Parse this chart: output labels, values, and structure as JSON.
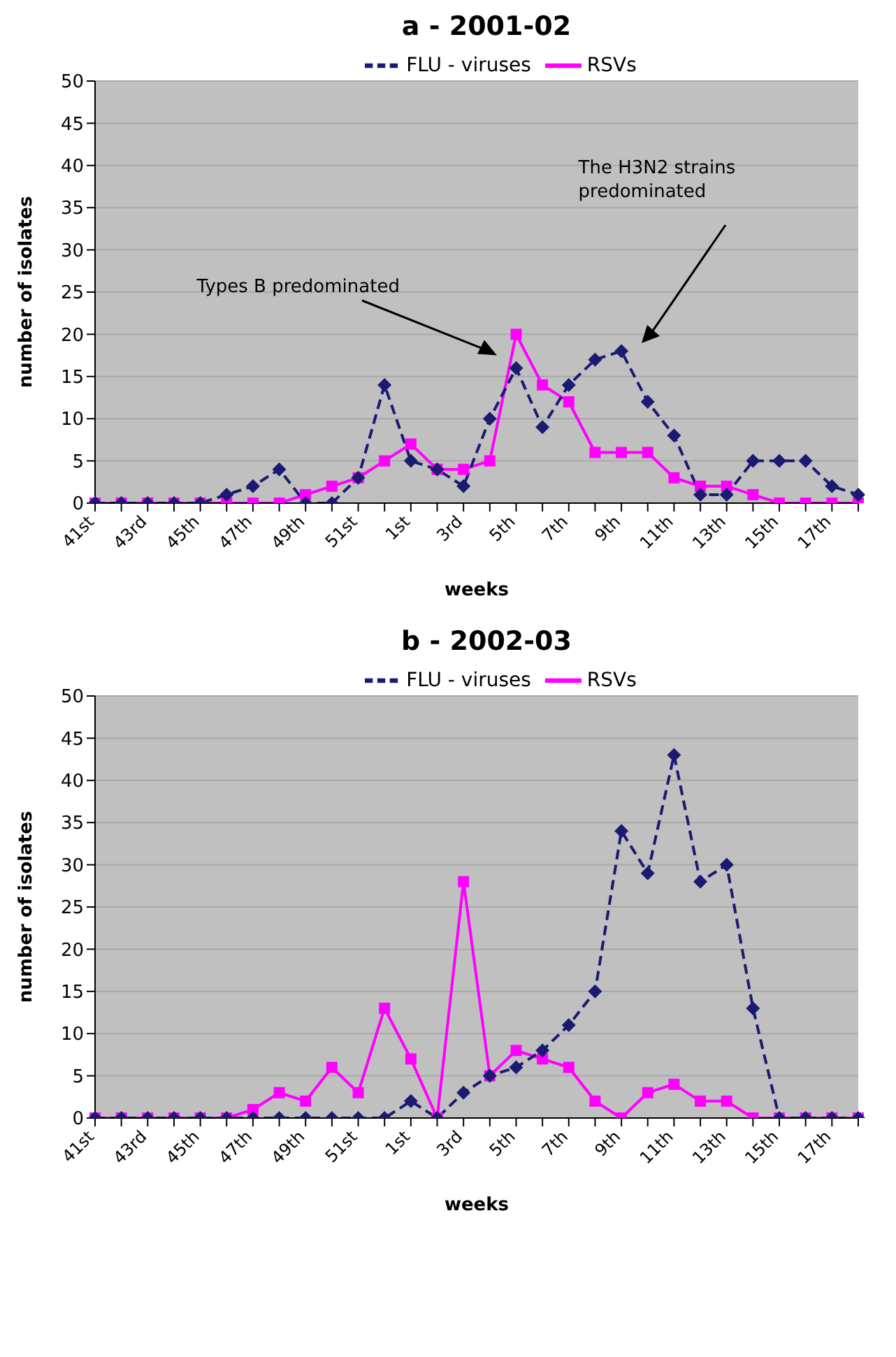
{
  "chart_data": [
    {
      "type": "line",
      "title": "a - 2001-02",
      "xlabel": "weeks",
      "ylabel": "number of isolates",
      "categories": [
        "41st",
        null,
        "43rd",
        null,
        "45th",
        null,
        "47th",
        null,
        "49th",
        null,
        "51st",
        null,
        "1st",
        null,
        "3rd",
        null,
        "5th",
        null,
        "7th",
        null,
        "9th",
        null,
        "11th",
        null,
        "13th",
        null,
        "15th",
        null,
        "17th",
        null
      ],
      "series": [
        {
          "name": "FLU - viruses",
          "color": "#1a1a72",
          "line_style": "dashed",
          "marker": "diamond",
          "values": [
            0,
            0,
            0,
            0,
            0,
            1,
            2,
            4,
            0,
            0,
            3,
            14,
            5,
            4,
            2,
            10,
            16,
            9,
            14,
            17,
            18,
            12,
            8,
            1,
            1,
            5,
            5,
            5,
            2,
            1
          ]
        },
        {
          "name": "RSVs",
          "color": "#ff00ff",
          "line_style": "solid",
          "marker": "square",
          "values": [
            0,
            0,
            0,
            0,
            0,
            0,
            0,
            0,
            1,
            2,
            3,
            5,
            7,
            4,
            4,
            5,
            20,
            14,
            12,
            6,
            6,
            6,
            3,
            2,
            2,
            1,
            0,
            0,
            0,
            0
          ]
        }
      ],
      "ylim": [
        0,
        50
      ],
      "yticks": [
        0,
        5,
        10,
        15,
        20,
        25,
        30,
        35,
        40,
        45,
        50
      ],
      "grid": "y",
      "legend": "top",
      "annotations": [
        "Types B predominated",
        "The H3N2 strains predominated"
      ]
    },
    {
      "type": "line",
      "title": "b - 2002-03",
      "xlabel": "weeks",
      "ylabel": "number of isolates",
      "categories": [
        "41st",
        null,
        "43rd",
        null,
        "45th",
        null,
        "47th",
        null,
        "49th",
        null,
        "51st",
        null,
        "1st",
        null,
        "3rd",
        null,
        "5th",
        null,
        "7th",
        null,
        "9th",
        null,
        "11th",
        null,
        "13th",
        null,
        "15th",
        null,
        "17th",
        null
      ],
      "series": [
        {
          "name": "FLU - viruses",
          "color": "#1a1a72",
          "line_style": "dashed",
          "marker": "diamond",
          "values": [
            0,
            0,
            0,
            0,
            0,
            0,
            0,
            0,
            0,
            0,
            0,
            0,
            2,
            0,
            3,
            5,
            6,
            8,
            11,
            15,
            34,
            29,
            43,
            28,
            30,
            13,
            0,
            0,
            0,
            0
          ]
        },
        {
          "name": "RSVs",
          "color": "#ff00ff",
          "line_style": "solid",
          "marker": "square",
          "values": [
            0,
            0,
            0,
            0,
            0,
            0,
            1,
            3,
            2,
            6,
            3,
            13,
            7,
            0,
            28,
            5,
            8,
            7,
            6,
            2,
            0,
            3,
            4,
            2,
            2,
            0,
            0,
            0,
            0,
            0
          ]
        }
      ],
      "ylim": [
        0,
        50
      ],
      "yticks": [
        0,
        5,
        10,
        15,
        20,
        25,
        30,
        35,
        40,
        45,
        50
      ],
      "grid": "y",
      "legend": "top"
    }
  ]
}
